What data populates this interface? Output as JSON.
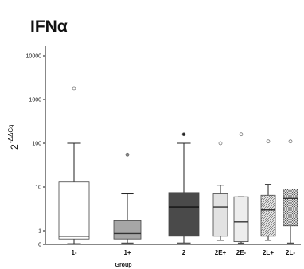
{
  "chart_data": {
    "type": "boxplot",
    "title": "IFNα",
    "xlabel": "Group",
    "ylabel_base": "2",
    "ylabel_exponent": "-ΔΔCq",
    "yscale": "log",
    "y_tick_labels": [
      "0",
      "1",
      "10",
      "100",
      "1000",
      "10000"
    ],
    "y_tick_values": [
      0,
      1,
      10,
      100,
      1000,
      10000
    ],
    "grid": false,
    "legend": "none",
    "categories": [
      "1-",
      "1+",
      "2",
      "2E+",
      "2E-",
      "2L+",
      "2L-"
    ],
    "boxes": [
      {
        "category": "1-",
        "whisker_low": 0.05,
        "q1": 0.4,
        "median": 0.6,
        "q3": 13,
        "whisker_high": 100,
        "outliers": [
          1800
        ]
      },
      {
        "category": "1+",
        "whisker_low": 0.1,
        "q1": 0.4,
        "median": 0.8,
        "q3": 1.7,
        "whisker_high": 7,
        "outliers": [
          55
        ]
      },
      {
        "category": "2",
        "whisker_low": 0.1,
        "q1": 0.6,
        "median": 3.5,
        "q3": 7.5,
        "whisker_high": 100,
        "outliers": [
          160
        ]
      },
      {
        "category": "2E+",
        "whisker_low": 0.3,
        "q1": 0.6,
        "median": 3.5,
        "q3": 7,
        "whisker_high": 11,
        "outliers": [
          100
        ]
      },
      {
        "category": "2E-",
        "whisker_low": 0.1,
        "q1": 0.2,
        "median": 1.6,
        "q3": 6,
        "whisker_high": 6,
        "outliers": [
          160
        ]
      },
      {
        "category": "2L+",
        "whisker_low": 0.3,
        "q1": 0.6,
        "median": 3,
        "q3": 6.5,
        "whisker_high": 11.5,
        "outliers": [
          110
        ]
      },
      {
        "category": "2L-",
        "whisker_low": 0.1,
        "q1": 1.3,
        "median": 5.5,
        "q3": 9,
        "whisker_high": 9,
        "outliers": [
          110
        ]
      }
    ],
    "colors": {
      "1-": "#ffffff",
      "1+": "#a6a6a6",
      "2": "#4a4a4a",
      "2E+": "#e2e2e2",
      "2E-": "#ededed",
      "2L+": "#e6e6e6",
      "2L-": "#dcdcdc",
      "outlier_2": "#222222",
      "outlier_1plus": "#888888",
      "outlier_other": "#ffffff",
      "axis": "#111111"
    }
  }
}
